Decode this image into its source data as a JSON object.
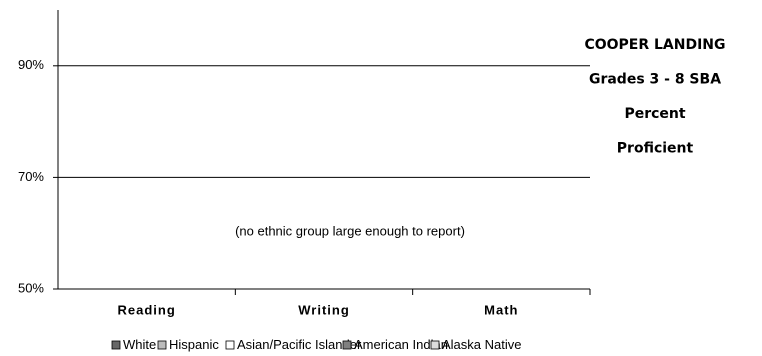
{
  "chart_data": {
    "type": "bar",
    "title": [
      "COOPER LANDING",
      "Grades 3 - 8 SBA",
      "Percent",
      "Proficient"
    ],
    "annotation": "(no ethnic group large enough to report)",
    "categories": [
      "Reading",
      "Writing",
      "Math"
    ],
    "series": [
      {
        "name": "White",
        "color": "#666666",
        "values": [
          null,
          null,
          null
        ]
      },
      {
        "name": "Hispanic",
        "color": "#bbbbbb",
        "values": [
          null,
          null,
          null
        ]
      },
      {
        "name": "Asian/Pacific Islander",
        "color": "#ffffff",
        "values": [
          null,
          null,
          null
        ]
      },
      {
        "name": "American Indian",
        "color": "#808080",
        "values": [
          null,
          null,
          null
        ]
      },
      {
        "name": "Alaska Native",
        "color": "#dddddd",
        "values": [
          null,
          null,
          null
        ]
      }
    ],
    "ylim": [
      50,
      100
    ],
    "yticks": [
      {
        "value": 50,
        "label": "50%"
      },
      {
        "value": 70,
        "label": "70%"
      },
      {
        "value": 90,
        "label": "90%"
      }
    ],
    "grid": true
  }
}
